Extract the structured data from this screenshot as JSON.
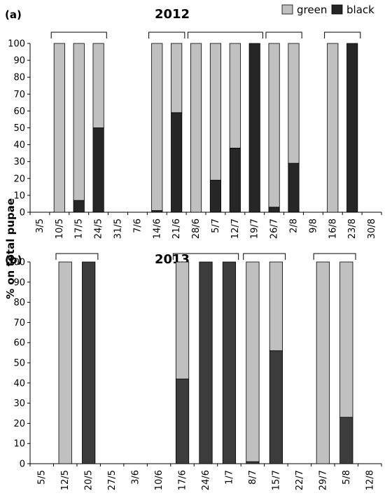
{
  "figure": {
    "ylabel": "% on total pupae",
    "legend": [
      {
        "name": "green",
        "color": "#c0c0c0"
      },
      {
        "name": "black",
        "color": "#262626"
      }
    ],
    "bar_colors": {
      "green": "#c0c0c0",
      "black_2012": "#262626",
      "black_2013": "#3c3c3c"
    }
  },
  "chart_data": [
    {
      "type": "bar",
      "stacked": true,
      "panel": "(a)",
      "title": "2012",
      "ylim": [
        0,
        100
      ],
      "yticks": [
        0,
        10,
        20,
        30,
        40,
        50,
        60,
        70,
        80,
        90,
        100
      ],
      "categories": [
        "3/5",
        "10/5",
        "17/5",
        "24/5",
        "31/5",
        "7/6",
        "14/6",
        "21/6",
        "28/6",
        "5/7",
        "12/7",
        "19/7",
        "26/7",
        "2/8",
        "9/8",
        "16/8",
        "23/8",
        "30/8"
      ],
      "series": [
        {
          "name": "black",
          "values": [
            null,
            0,
            7,
            50,
            null,
            null,
            1,
            59,
            0,
            19,
            38,
            100,
            3,
            29,
            null,
            0,
            100,
            null
          ]
        },
        {
          "name": "green",
          "values": [
            null,
            100,
            93,
            50,
            null,
            null,
            99,
            41,
            100,
            81,
            62,
            0,
            97,
            71,
            null,
            100,
            0,
            null
          ]
        }
      ],
      "brackets": [
        [
          "10/5",
          "24/5"
        ],
        [
          "14/6",
          "21/6"
        ],
        [
          "28/6",
          "19/7"
        ],
        [
          "26/7",
          "2/8"
        ],
        [
          "16/8",
          "23/8"
        ]
      ]
    },
    {
      "type": "bar",
      "stacked": true,
      "panel": "(b)",
      "title": "2013",
      "ylim": [
        0,
        100
      ],
      "yticks": [
        0,
        10,
        20,
        30,
        40,
        50,
        60,
        70,
        80,
        90,
        100
      ],
      "categories": [
        "5/5",
        "12/5",
        "20/5",
        "27/5",
        "3/6",
        "10/6",
        "17/6",
        "24/6",
        "1/7",
        "8/7",
        "15/7",
        "22/7",
        "29/7",
        "5/8",
        "12/8"
      ],
      "series": [
        {
          "name": "black",
          "values": [
            null,
            0,
            100,
            null,
            null,
            null,
            42,
            100,
            100,
            1,
            56,
            null,
            0,
            23,
            null
          ]
        },
        {
          "name": "green",
          "values": [
            null,
            100,
            0,
            null,
            null,
            null,
            58,
            0,
            0,
            99,
            44,
            null,
            100,
            77,
            null
          ]
        }
      ],
      "brackets": [
        [
          "12/5",
          "20/5"
        ],
        [
          "17/6",
          "1/7"
        ],
        [
          "8/7",
          "15/7"
        ],
        [
          "29/7",
          "5/8"
        ]
      ]
    }
  ]
}
